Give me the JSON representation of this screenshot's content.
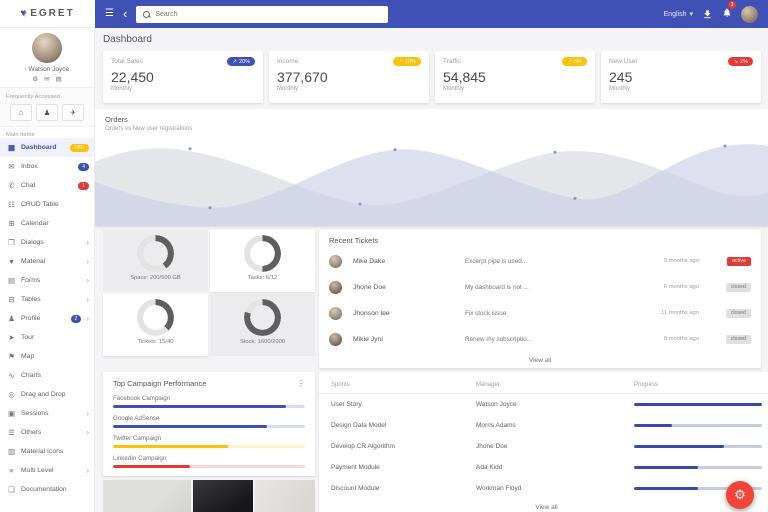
{
  "topbar": {
    "logo": "EGRET",
    "search_placeholder": "Search",
    "language": "English",
    "caret": "▾",
    "notification_count": "3"
  },
  "sidebar": {
    "user": {
      "name": "Watson Joyce"
    },
    "freq_label": "Frequently Accessed",
    "main_label": "Main Items",
    "freq_buttons": [
      {
        "icon": "home-icon"
      },
      {
        "icon": "person-icon"
      },
      {
        "icon": "flight-icon"
      }
    ],
    "items": [
      {
        "label": "Dashboard",
        "icon": "dashboard-icon",
        "badge": "100+",
        "badge_color": "#ffc107",
        "state": "active"
      },
      {
        "label": "Inbox",
        "icon": "inbox-icon",
        "badge": "4",
        "badge_color": "#3f51b5"
      },
      {
        "label": "Chat",
        "icon": "chat-icon",
        "badge": "1",
        "badge_color": "#e53935"
      },
      {
        "label": "CRUD Table",
        "icon": "crud-table-icon"
      },
      {
        "label": "Calendar",
        "icon": "calendar-icon"
      },
      {
        "label": "Dialogs",
        "icon": "dialogs-icon",
        "arrow": "›"
      },
      {
        "label": "Material",
        "icon": "material-icon",
        "arrow": "›"
      },
      {
        "label": "Forms",
        "icon": "forms-icon",
        "arrow": "›"
      },
      {
        "label": "Tables",
        "icon": "tables-icon",
        "arrow": "›"
      },
      {
        "label": "Profile",
        "icon": "profile-icon",
        "badge": "2",
        "badge_color": "#3f51b5",
        "arrow": "›"
      },
      {
        "label": "Tour",
        "icon": "tour-icon"
      },
      {
        "label": "Map",
        "icon": "map-icon"
      },
      {
        "label": "Charts",
        "icon": "charts-icon"
      },
      {
        "label": "Drag and Drop",
        "icon": "drag-drop-icon"
      },
      {
        "label": "Sessions",
        "icon": "sessions-icon",
        "arrow": "›"
      },
      {
        "label": "Others",
        "icon": "others-icon",
        "arrow": "›"
      },
      {
        "label": "Material Icons",
        "icon": "material-icons-icon"
      },
      {
        "label": "Multi Level",
        "icon": "multi-level-icon",
        "arrow": "›"
      },
      {
        "label": "Documentation",
        "icon": "documentation-icon"
      }
    ]
  },
  "page": {
    "title": "Dashboard"
  },
  "stat_cards": [
    {
      "label": "Total Sales",
      "value": "22,450",
      "sub": "Monthly",
      "badge": "20%",
      "badge_color": "#3f51b5",
      "trend_icon": "trend-up-icon"
    },
    {
      "label": "Income",
      "value": "377,670",
      "sub": "Monthly",
      "badge": "10%",
      "badge_color": "#ffc107",
      "trend_icon": "trend-up-icon"
    },
    {
      "label": "Traffic",
      "value": "54,845",
      "sub": "Monthly",
      "badge": "5%",
      "badge_color": "#ffc107",
      "trend_icon": "trend-up-icon"
    },
    {
      "label": "New User",
      "value": "245",
      "sub": "Monthly",
      "badge": "2%",
      "badge_color": "#e53935",
      "trend_icon": "trend-down-icon"
    }
  ],
  "panels": {
    "orders": {
      "title": "Orders",
      "subtitle": "Orders vs New user registrations"
    },
    "gauges": [
      {
        "label": "Space: 200/500 GB",
        "value": 200,
        "max": 500,
        "tile": "gray"
      },
      {
        "label": "Tasks: 6/12",
        "value": 6,
        "max": 12,
        "tile": "white"
      },
      {
        "label": "Tickets: 15/40",
        "value": 15,
        "max": 40,
        "tile": "white"
      },
      {
        "label": "Stock: 1600/2000",
        "value": 1600,
        "max": 2000,
        "tile": "gray"
      }
    ],
    "tickets": {
      "title": "Recent Tickets",
      "view_all": "View all",
      "rows": [
        {
          "name": "Mike Dake",
          "excerpt": "Excerpt pipe is used...",
          "time": "9 months ago",
          "status": "active",
          "status_label": "active"
        },
        {
          "name": "Jhone Doe",
          "excerpt": "My dashboard is not ...",
          "time": "6 months ago",
          "status": "closed",
          "status_label": "closed"
        },
        {
          "name": "Jhonson lee",
          "excerpt": "Fix stock issue",
          "time": "11 months ago",
          "status": "closed",
          "status_label": "closed"
        },
        {
          "name": "Mikie Jyni",
          "excerpt": "Renew my subscriptio...",
          "time": "8 months ago",
          "status": "closed",
          "status_label": "closed"
        }
      ]
    },
    "campaigns": {
      "title": "Top Campaign Performance",
      "items": [
        {
          "label": "Facebook Campaign",
          "value": 90,
          "color": "#3f51b5"
        },
        {
          "label": "Google AdSense",
          "value": 80,
          "color": "#3f51b5"
        },
        {
          "label": "Twitter Campaign",
          "value": 60,
          "color": "#ffc107"
        },
        {
          "label": "LinkedIn Campaign",
          "value": 40,
          "color": "#e53935"
        }
      ]
    },
    "sprints": {
      "headers": [
        "Sprints",
        "Manager",
        "Progress"
      ],
      "view_all": "View all",
      "rows": [
        {
          "sprint": "User Story",
          "manager": "Watson Joyce",
          "progress": 100
        },
        {
          "sprint": "Design Data Model",
          "manager": "Morris Adams",
          "progress": 30
        },
        {
          "sprint": "Develop CR Algorithm",
          "manager": "Jhone Doe",
          "progress": 70
        },
        {
          "sprint": "Payment Module",
          "manager": "Ada Kidd",
          "progress": 50
        },
        {
          "sprint": "Discount Module",
          "manager": "Workman Floyd",
          "progress": 50
        }
      ]
    }
  },
  "colors": {
    "accent": "#3f51b5",
    "warn": "#ffc107",
    "danger": "#e53935",
    "gauge_arc": "#5f5f5f",
    "gauge_rest": "#e3e3e3"
  }
}
